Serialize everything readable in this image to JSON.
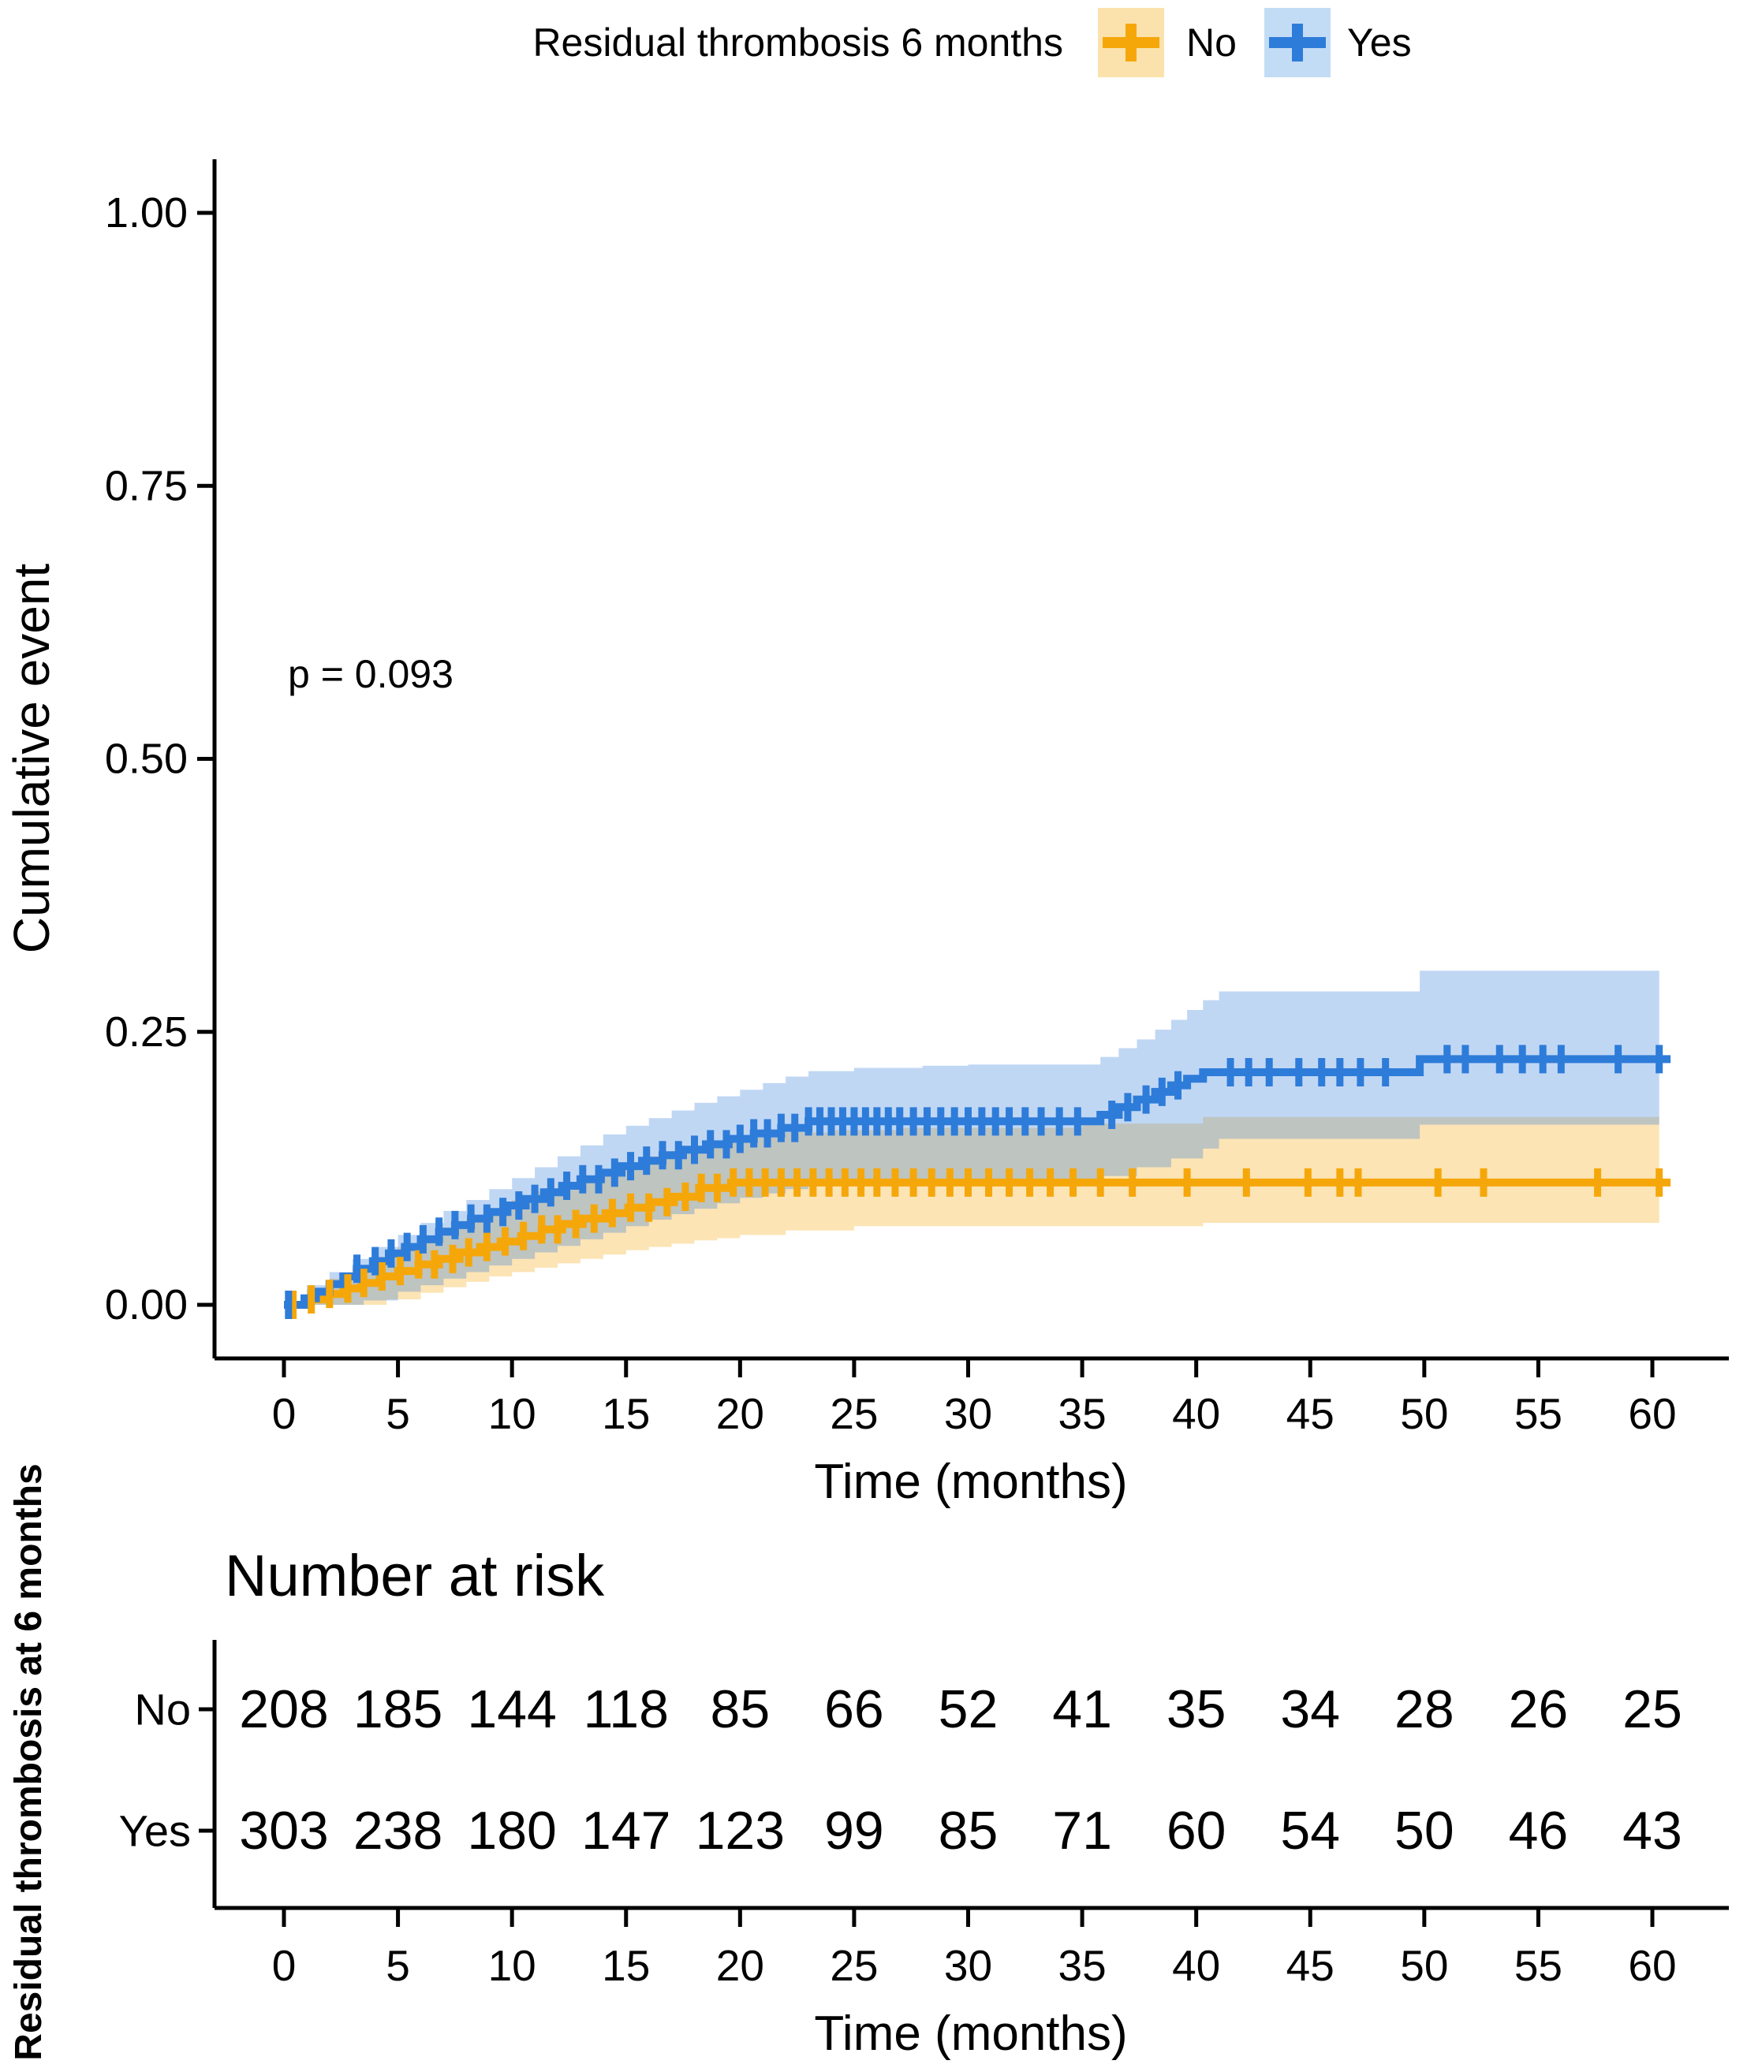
{
  "legend": {
    "title": "Residual thrombosis 6 months",
    "items": [
      {
        "label": "No",
        "line_color": "#F5A70A",
        "band_color": "#FBE2AC"
      },
      {
        "label": "Yes",
        "line_color": "#2E7CD9",
        "band_color": "#C3DCF5"
      }
    ]
  },
  "annotation": {
    "p_value": "p = 0.093"
  },
  "chart_data": {
    "type": "line",
    "subtype": "kaplan-meier-cumulative-incidence-step",
    "title": "",
    "xlabel": "Time (months)",
    "ylabel": "Cumulative event",
    "xlim": [
      0,
      62
    ],
    "ylim": [
      0,
      1.05
    ],
    "grid": false,
    "legend_position": "top",
    "x_ticks": [
      0,
      5,
      10,
      15,
      20,
      25,
      30,
      35,
      40,
      45,
      50,
      55,
      60
    ],
    "y_ticks": [
      {
        "value": 0.0,
        "label": "0.00"
      },
      {
        "value": 0.25,
        "label": "0.25"
      },
      {
        "value": 0.5,
        "label": "0.50"
      },
      {
        "value": 0.75,
        "label": "0.75"
      },
      {
        "value": 1.0,
        "label": "1.00"
      }
    ],
    "end_time": 60.8,
    "band_end_time": 60.3,
    "series": [
      {
        "name": "No",
        "line_color": "#F5A70A",
        "band_color": "#FBE2AC",
        "label_color": "#F8AE1C",
        "steps": [
          [
            0,
            0
          ],
          [
            1,
            0.005
          ],
          [
            1.8,
            0.01
          ],
          [
            2.6,
            0.015
          ],
          [
            3.4,
            0.02
          ],
          [
            4.2,
            0.026
          ],
          [
            5,
            0.031
          ],
          [
            5.9,
            0.037
          ],
          [
            6.8,
            0.042
          ],
          [
            7.7,
            0.048
          ],
          [
            8.6,
            0.053
          ],
          [
            9.5,
            0.058
          ],
          [
            10.4,
            0.063
          ],
          [
            11.3,
            0.069
          ],
          [
            12.2,
            0.074
          ],
          [
            13.1,
            0.079
          ],
          [
            14.1,
            0.084
          ],
          [
            15.1,
            0.089
          ],
          [
            16.1,
            0.094
          ],
          [
            17.1,
            0.099
          ],
          [
            18.2,
            0.107
          ],
          [
            19.6,
            0.112
          ]
        ],
        "band_upper": [
          [
            0,
            0
          ],
          [
            1,
            0.014
          ],
          [
            2,
            0.024
          ],
          [
            3,
            0.034
          ],
          [
            4,
            0.044
          ],
          [
            5,
            0.053
          ],
          [
            6,
            0.062
          ],
          [
            7,
            0.071
          ],
          [
            8,
            0.08
          ],
          [
            9,
            0.088
          ],
          [
            10,
            0.096
          ],
          [
            11,
            0.104
          ],
          [
            12,
            0.111
          ],
          [
            13,
            0.118
          ],
          [
            14,
            0.124
          ],
          [
            15,
            0.13
          ],
          [
            16,
            0.136
          ],
          [
            17,
            0.141
          ],
          [
            18,
            0.146
          ],
          [
            19,
            0.15
          ],
          [
            20,
            0.153
          ],
          [
            21,
            0.156
          ],
          [
            22,
            0.158
          ],
          [
            24,
            0.16
          ],
          [
            27,
            0.162
          ],
          [
            35,
            0.166
          ],
          [
            40.3,
            0.172
          ]
        ],
        "band_lower": [
          [
            0,
            0
          ],
          [
            4.5,
            0.005
          ],
          [
            6,
            0.011
          ],
          [
            7,
            0.016
          ],
          [
            8,
            0.021
          ],
          [
            9,
            0.026
          ],
          [
            10,
            0.03
          ],
          [
            11,
            0.034
          ],
          [
            12,
            0.038
          ],
          [
            13,
            0.042
          ],
          [
            14,
            0.046
          ],
          [
            15,
            0.05
          ],
          [
            16,
            0.053
          ],
          [
            17,
            0.056
          ],
          [
            18,
            0.059
          ],
          [
            19,
            0.061
          ],
          [
            20,
            0.064
          ],
          [
            22,
            0.068
          ],
          [
            25,
            0.072
          ],
          [
            40.3,
            0.075
          ]
        ],
        "censor_times": [
          0.4,
          1.2,
          2.0,
          2.8,
          3.5,
          4.3,
          5.1,
          5.9,
          6.6,
          7.4,
          8.1,
          8.9,
          9.7,
          10.5,
          11.3,
          12.0,
          12.8,
          13.6,
          14.4,
          15.2,
          16.0,
          16.8,
          17.6,
          18.3,
          19.0,
          19.7,
          20.4,
          21.1,
          21.8,
          22.5,
          23.2,
          23.9,
          24.6,
          25.3,
          26.0,
          26.8,
          27.6,
          28.4,
          29.2,
          30.0,
          30.9,
          31.8,
          32.7,
          33.6,
          34.6,
          35.8,
          37.2,
          39.6,
          42.2,
          44.9,
          46.3,
          47.1,
          50.6,
          52.6,
          57.6,
          60.3
        ]
      },
      {
        "name": "Yes",
        "line_color": "#2E7CD9",
        "band_color": "#C3DCF5",
        "label_color": "#4687EC",
        "steps": [
          [
            0,
            0
          ],
          [
            0.9,
            0.006
          ],
          [
            1.4,
            0.012
          ],
          [
            2,
            0.019
          ],
          [
            2.6,
            0.026
          ],
          [
            3.2,
            0.033
          ],
          [
            3.9,
            0.04
          ],
          [
            4.6,
            0.047
          ],
          [
            5.3,
            0.053
          ],
          [
            6,
            0.06
          ],
          [
            6.8,
            0.067
          ],
          [
            7.5,
            0.073
          ],
          [
            8.2,
            0.079
          ],
          [
            9,
            0.085
          ],
          [
            9.8,
            0.091
          ],
          [
            10.6,
            0.097
          ],
          [
            11.4,
            0.103
          ],
          [
            12.2,
            0.109
          ],
          [
            13,
            0.115
          ],
          [
            13.9,
            0.121
          ],
          [
            14.8,
            0.127
          ],
          [
            15.7,
            0.132
          ],
          [
            16.6,
            0.137
          ],
          [
            17.5,
            0.142
          ],
          [
            18.5,
            0.147
          ],
          [
            19.5,
            0.152
          ],
          [
            20.6,
            0.157
          ],
          [
            21.8,
            0.162
          ],
          [
            23,
            0.168
          ],
          [
            35.8,
            0.174
          ],
          [
            36.6,
            0.181
          ],
          [
            37.4,
            0.188
          ],
          [
            38.2,
            0.195
          ],
          [
            38.9,
            0.201
          ],
          [
            39.6,
            0.207
          ],
          [
            40.3,
            0.213
          ],
          [
            49.8,
            0.225
          ]
        ],
        "band_upper": [
          [
            0,
            0
          ],
          [
            1,
            0.018
          ],
          [
            2,
            0.03
          ],
          [
            3,
            0.042
          ],
          [
            4,
            0.053
          ],
          [
            5,
            0.064
          ],
          [
            6,
            0.075
          ],
          [
            7,
            0.086
          ],
          [
            8,
            0.096
          ],
          [
            9,
            0.106
          ],
          [
            10,
            0.116
          ],
          [
            11,
            0.126
          ],
          [
            12,
            0.136
          ],
          [
            13,
            0.146
          ],
          [
            14,
            0.156
          ],
          [
            15,
            0.164
          ],
          [
            16,
            0.171
          ],
          [
            17,
            0.178
          ],
          [
            18,
            0.185
          ],
          [
            19,
            0.191
          ],
          [
            20,
            0.197
          ],
          [
            21,
            0.203
          ],
          [
            22,
            0.209
          ],
          [
            23,
            0.214
          ],
          [
            25,
            0.217
          ],
          [
            28,
            0.219
          ],
          [
            30,
            0.22
          ],
          [
            35.8,
            0.227
          ],
          [
            36.6,
            0.235
          ],
          [
            37.4,
            0.243
          ],
          [
            38.2,
            0.252
          ],
          [
            38.9,
            0.261
          ],
          [
            39.6,
            0.27
          ],
          [
            40.3,
            0.279
          ],
          [
            41,
            0.287
          ],
          [
            49.8,
            0.306
          ]
        ],
        "band_lower": [
          [
            0,
            0
          ],
          [
            3.5,
            0.004
          ],
          [
            5,
            0.012
          ],
          [
            6,
            0.018
          ],
          [
            7,
            0.024
          ],
          [
            8,
            0.03
          ],
          [
            9,
            0.036
          ],
          [
            10,
            0.042
          ],
          [
            11,
            0.048
          ],
          [
            12,
            0.054
          ],
          [
            13,
            0.06
          ],
          [
            14,
            0.066
          ],
          [
            15,
            0.072
          ],
          [
            16,
            0.078
          ],
          [
            17,
            0.083
          ],
          [
            18,
            0.088
          ],
          [
            19,
            0.093
          ],
          [
            20,
            0.098
          ],
          [
            21,
            0.102
          ],
          [
            22,
            0.106
          ],
          [
            23,
            0.109
          ],
          [
            25,
            0.112
          ],
          [
            28,
            0.114
          ],
          [
            35.8,
            0.118
          ],
          [
            37.4,
            0.126
          ],
          [
            38.9,
            0.134
          ],
          [
            40.3,
            0.143
          ],
          [
            41,
            0.152
          ],
          [
            49.8,
            0.165
          ]
        ],
        "censor_times": [
          0.2,
          3.2,
          4.0,
          4.7,
          5.4,
          6.1,
          6.8,
          7.5,
          8.2,
          8.9,
          9.6,
          10.3,
          11.0,
          11.7,
          12.4,
          13.1,
          13.8,
          14.5,
          15.2,
          15.9,
          16.6,
          17.3,
          18.0,
          18.7,
          19.4,
          20.0,
          20.6,
          21.2,
          21.8,
          22.4,
          23.0,
          23.5,
          24.0,
          24.5,
          25.0,
          25.5,
          26.0,
          26.5,
          27.0,
          27.6,
          28.2,
          28.8,
          29.4,
          30.0,
          30.6,
          31.2,
          31.8,
          32.5,
          33.2,
          34.0,
          34.8,
          36.3,
          37.0,
          37.8,
          38.5,
          39.2,
          41.5,
          42.3,
          43.2,
          44.5,
          45.5,
          46.3,
          47.2,
          48.3,
          51.0,
          51.8,
          53.3,
          54.3,
          55.2,
          56.0,
          58.5,
          60.3
        ]
      }
    ]
  },
  "risk_table": {
    "title": "Number at risk",
    "axis_label": "Residual thrombosis at 6 months",
    "xlabel": "Time (months)",
    "x_ticks": [
      0,
      5,
      10,
      15,
      20,
      25,
      30,
      35,
      40,
      45,
      50,
      55,
      60
    ],
    "rows": [
      {
        "label": "No",
        "color": "#F8AE1C",
        "values": [
          208,
          185,
          144,
          118,
          85,
          66,
          52,
          41,
          35,
          34,
          28,
          26,
          25
        ]
      },
      {
        "label": "Yes",
        "color": "#4687EC",
        "values": [
          303,
          238,
          180,
          147,
          123,
          99,
          85,
          71,
          60,
          54,
          50,
          46,
          43
        ]
      }
    ]
  }
}
